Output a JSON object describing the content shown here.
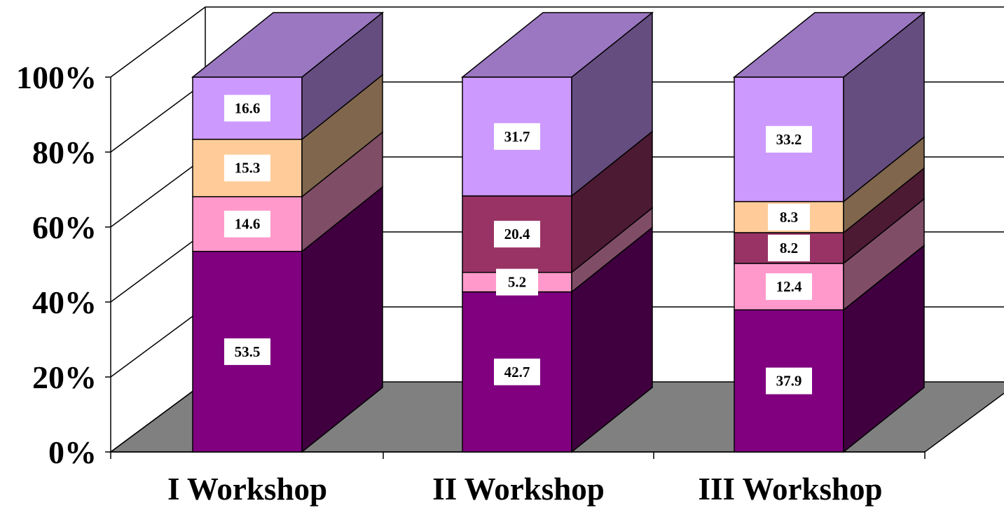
{
  "chart_data": {
    "type": "bar",
    "stacked": true,
    "three_d": true,
    "percent_stacked": true,
    "categories": [
      "I Workshop",
      "II Workshop",
      "III Workshop"
    ],
    "series": [
      {
        "values": [
          53.5,
          42.7,
          37.9
        ],
        "color": "#800080",
        "side_color": "#400040"
      },
      {
        "values": [
          14.6,
          5.2,
          12.4
        ],
        "color": "#FF99CC",
        "side_color": "#804D66"
      },
      {
        "values": [
          0,
          20.4,
          8.2
        ],
        "color": "#993366",
        "side_color": "#4D1A33"
      },
      {
        "values": [
          15.3,
          0,
          8.3
        ],
        "color": "#FFCC99",
        "side_color": "#80664D"
      },
      {
        "values": [
          16.6,
          31.7,
          33.2
        ],
        "color": "#CC99FF",
        "side_color": "#664D80"
      }
    ],
    "data_labels": [
      [
        "53.5",
        "42.7",
        "37.9"
      ],
      [
        "14.6",
        "5.2",
        "12.4"
      ],
      [
        "",
        "20.4",
        "8.2"
      ],
      [
        "15.3",
        "",
        "8.3"
      ],
      [
        "16.6",
        "31.7",
        "33.2"
      ]
    ],
    "ylim": [
      0,
      100
    ],
    "y_ticks": [
      "0%",
      "20%",
      "40%",
      "60%",
      "80%",
      "100%"
    ],
    "grid": true,
    "floor_color": "#808080",
    "top_face_color": "#9B77C2"
  }
}
